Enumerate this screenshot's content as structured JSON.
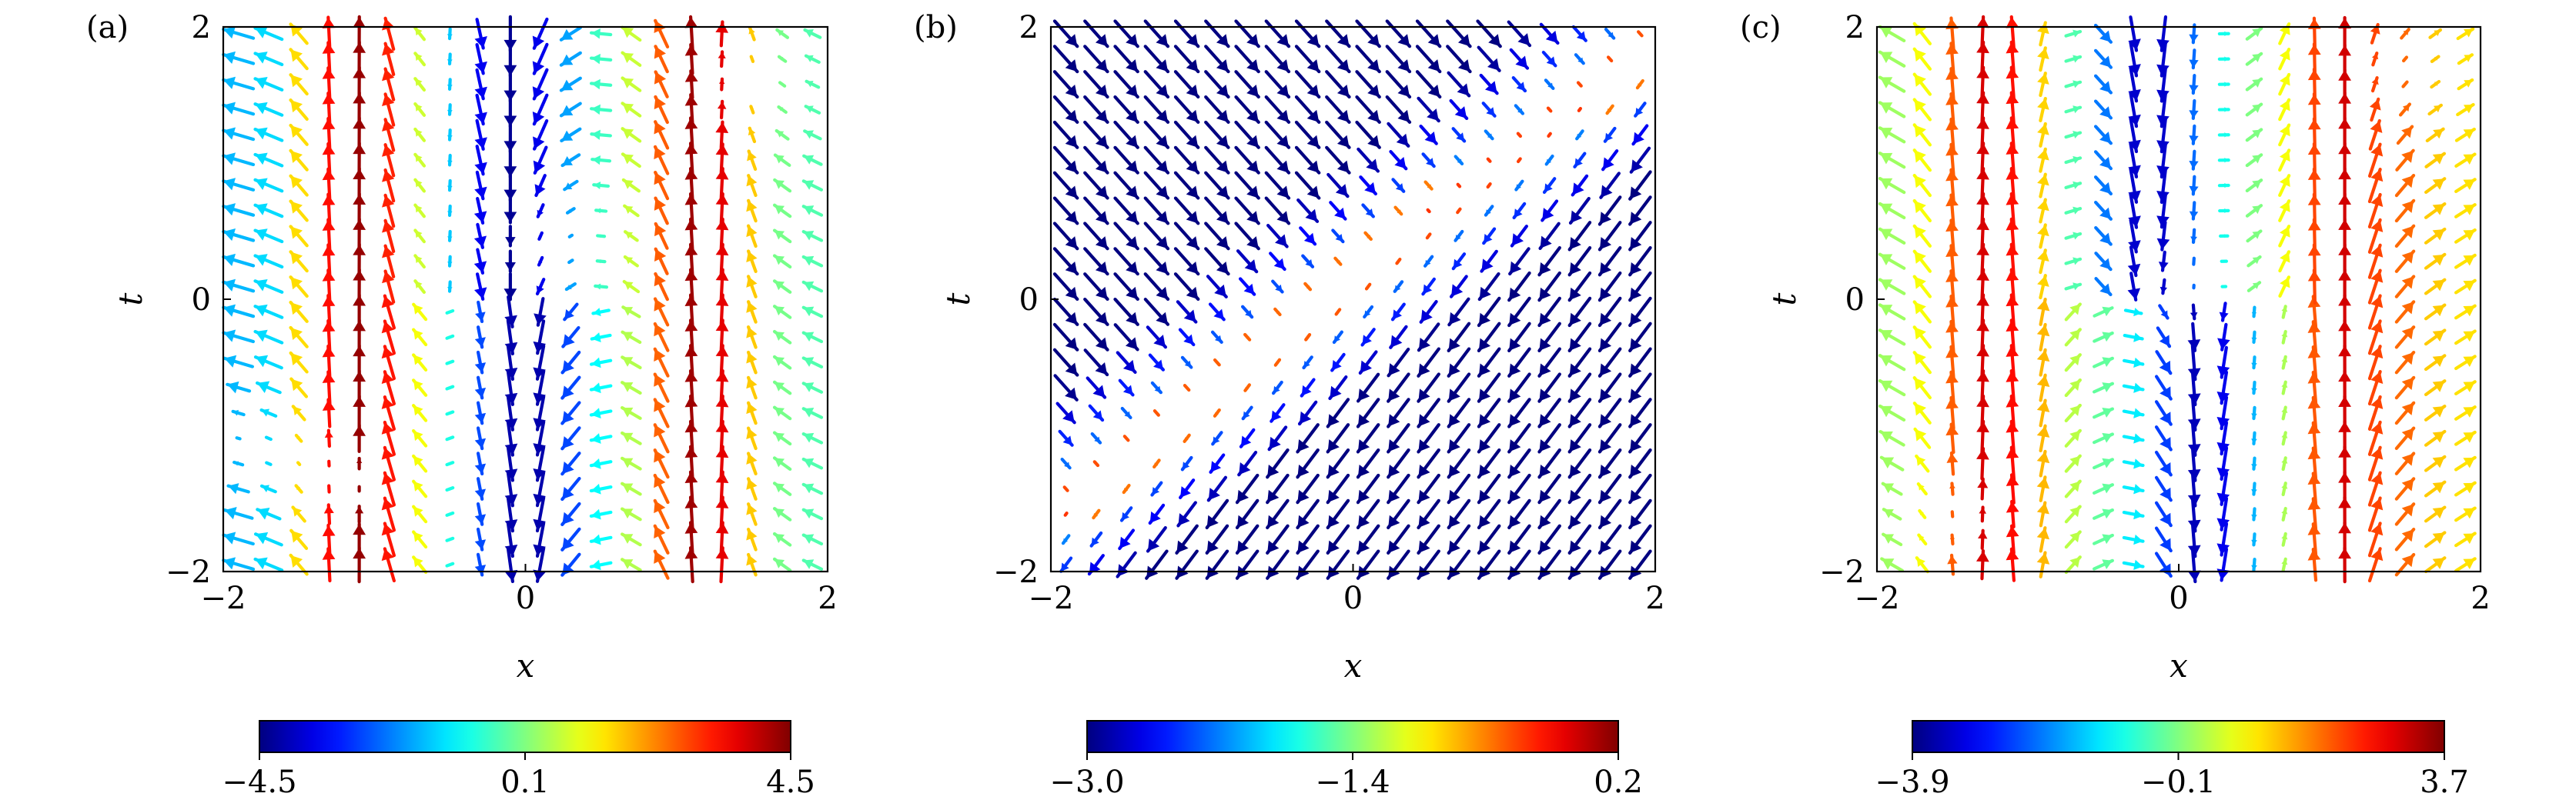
{
  "chart_data": [
    {
      "type": "quiver",
      "panel_label": "(a)",
      "xlabel": "x",
      "ylabel": "t",
      "xlim": [
        -2,
        2
      ],
      "ylim": [
        -2,
        2
      ],
      "xticks": [
        "−2",
        "0",
        "2"
      ],
      "yticks": [
        "−2",
        "0",
        "2"
      ],
      "x_centers": [
        -1.1,
        1.15
      ],
      "bottom_center": 0.0,
      "top_center": -0.1,
      "colorbar": {
        "min": -4.5,
        "max": 4.5,
        "ticks": [
          "−4.5",
          "0.1",
          "4.5"
        ],
        "colormap": "jet"
      }
    },
    {
      "type": "quiver",
      "panel_label": "(b)",
      "xlabel": "x",
      "ylabel": "t",
      "xlim": [
        -2,
        2
      ],
      "ylim": [
        -2,
        2
      ],
      "xticks": [
        "−2",
        "0",
        "2"
      ],
      "yticks": [
        "−2",
        "0",
        "2"
      ],
      "calm_line": {
        "start": [
          -2,
          -1.6
        ],
        "end": [
          2,
          1.9
        ]
      },
      "colorbar": {
        "min": -3.0,
        "max": 0.2,
        "ticks": [
          "−3.0",
          "−1.4",
          "0.2"
        ],
        "colormap": "jet"
      }
    },
    {
      "type": "quiver",
      "panel_label": "(c)",
      "xlabel": "x",
      "ylabel": "t",
      "xlim": [
        -2,
        2
      ],
      "ylim": [
        -2,
        2
      ],
      "xticks": [
        "−2",
        "0",
        "2"
      ],
      "yticks": [
        "−2",
        "0",
        "2"
      ],
      "x_centers": [
        -1.25,
        1.1
      ],
      "bottom_center": 0.15,
      "top_center": -0.2,
      "colorbar": {
        "min": -3.9,
        "max": 3.7,
        "ticks": [
          "−3.9",
          "−0.1",
          "3.7"
        ],
        "colormap": "jet"
      }
    }
  ]
}
